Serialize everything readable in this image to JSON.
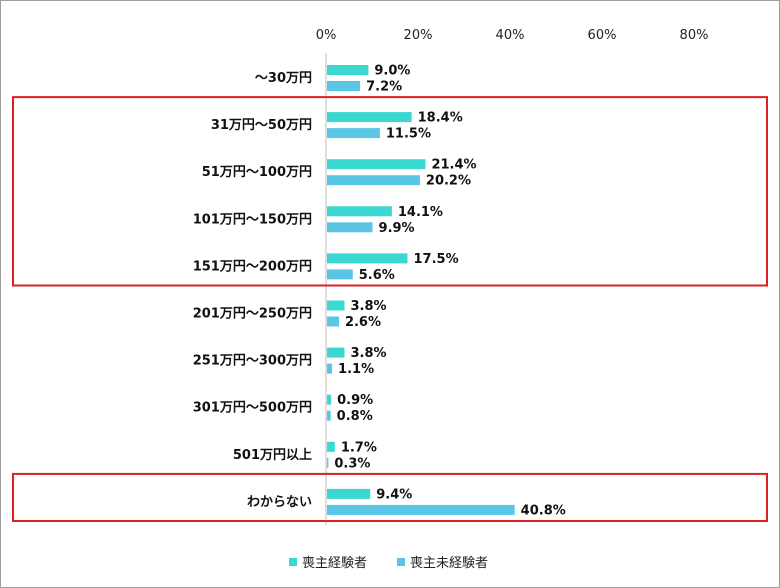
{
  "chart_data": {
    "type": "bar",
    "orientation": "horizontal",
    "categories": [
      "～30万円",
      "31万円～50万円",
      "51万円～100万円",
      "101万円～150万円",
      "151万円～200万円",
      "201万円～250万円",
      "251万円～300万円",
      "301万円～500万円",
      "501万円以上",
      "わからない"
    ],
    "series": [
      {
        "name": "喪主経験者",
        "color": "#3ad8d0",
        "values": [
          9.0,
          18.4,
          21.4,
          14.1,
          17.5,
          3.8,
          3.8,
          0.9,
          1.7,
          9.4
        ],
        "labels": [
          "9.0%",
          "18.4%",
          "21.4%",
          "14.1%",
          "17.5%",
          "3.8%",
          "3.8%",
          "0.9%",
          "1.7%",
          "9.4%"
        ]
      },
      {
        "name": "喪主未経験者",
        "color": "#5bc5e6",
        "values": [
          7.2,
          11.5,
          20.2,
          9.9,
          5.6,
          2.6,
          1.1,
          0.8,
          0.3,
          40.8
        ],
        "labels": [
          "7.2%",
          "11.5%",
          "20.2%",
          "9.9%",
          "5.6%",
          "2.6%",
          "1.1%",
          "0.8%",
          "0.3%",
          "40.8%"
        ]
      }
    ],
    "xlim": [
      0,
      80
    ],
    "ticks": [
      "0%",
      "20%",
      "40%",
      "60%",
      "80%"
    ],
    "tick_values": [
      0,
      20,
      40,
      60,
      80
    ],
    "grid": false,
    "legend_position": "bottom",
    "highlight_boxes": [
      {
        "from_category": 1,
        "to_category": 4,
        "color": "#e02020"
      },
      {
        "from_category": 9,
        "to_category": 9,
        "color": "#e02020"
      }
    ]
  }
}
